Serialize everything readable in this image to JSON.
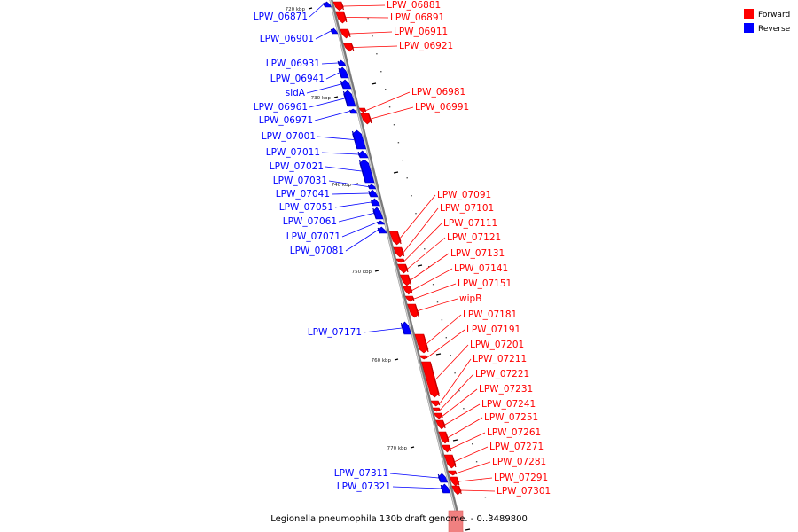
{
  "caption": "Legionella pneumophila 130b draft genome. - 0..3489800",
  "legend": [
    {
      "label": "Forward",
      "color": "#ff0000"
    },
    {
      "label": "Reverse",
      "color": "#0000ff"
    }
  ],
  "colors": {
    "forward": "#ff0000",
    "reverse": "#0000ff",
    "backbone": "#9a9a9a"
  },
  "ticks": [
    "720 kbp",
    "730 kbp",
    "740 kbp",
    "750 kbp",
    "760 kbp",
    "770 kbp"
  ],
  "genes": [
    {
      "id": "LPW_06871",
      "strand": "reverse"
    },
    {
      "id": "LPW_06881",
      "strand": "forward"
    },
    {
      "id": "LPW_06891",
      "strand": "forward"
    },
    {
      "id": "LPW_06901",
      "strand": "reverse"
    },
    {
      "id": "LPW_06911",
      "strand": "forward"
    },
    {
      "id": "LPW_06921",
      "strand": "forward"
    },
    {
      "id": "LPW_06931",
      "strand": "reverse"
    },
    {
      "id": "LPW_06941",
      "strand": "reverse"
    },
    {
      "id": "sidA",
      "strand": "reverse"
    },
    {
      "id": "LPW_06961",
      "strand": "reverse"
    },
    {
      "id": "LPW_06971",
      "strand": "reverse"
    },
    {
      "id": "LPW_06981",
      "strand": "forward"
    },
    {
      "id": "LPW_06991",
      "strand": "forward"
    },
    {
      "id": "LPW_07001",
      "strand": "reverse"
    },
    {
      "id": "LPW_07011",
      "strand": "reverse"
    },
    {
      "id": "LPW_07021",
      "strand": "reverse"
    },
    {
      "id": "LPW_07031",
      "strand": "reverse"
    },
    {
      "id": "LPW_07041",
      "strand": "reverse"
    },
    {
      "id": "LPW_07051",
      "strand": "reverse"
    },
    {
      "id": "LPW_07061",
      "strand": "reverse"
    },
    {
      "id": "LPW_07071",
      "strand": "reverse"
    },
    {
      "id": "LPW_07081",
      "strand": "reverse"
    },
    {
      "id": "LPW_07091",
      "strand": "forward"
    },
    {
      "id": "LPW_07101",
      "strand": "forward"
    },
    {
      "id": "LPW_07111",
      "strand": "forward"
    },
    {
      "id": "LPW_07121",
      "strand": "forward"
    },
    {
      "id": "LPW_07131",
      "strand": "forward"
    },
    {
      "id": "LPW_07141",
      "strand": "forward"
    },
    {
      "id": "LPW_07151",
      "strand": "forward"
    },
    {
      "id": "wipB",
      "strand": "forward"
    },
    {
      "id": "LPW_07171",
      "strand": "reverse"
    },
    {
      "id": "LPW_07181",
      "strand": "forward"
    },
    {
      "id": "LPW_07191",
      "strand": "forward"
    },
    {
      "id": "LPW_07201",
      "strand": "forward"
    },
    {
      "id": "LPW_07211",
      "strand": "forward"
    },
    {
      "id": "LPW_07221",
      "strand": "forward"
    },
    {
      "id": "LPW_07231",
      "strand": "forward"
    },
    {
      "id": "LPW_07241",
      "strand": "forward"
    },
    {
      "id": "LPW_07251",
      "strand": "forward"
    },
    {
      "id": "LPW_07261",
      "strand": "forward"
    },
    {
      "id": "LPW_07271",
      "strand": "forward"
    },
    {
      "id": "LPW_07281",
      "strand": "forward"
    },
    {
      "id": "LPW_07291",
      "strand": "forward"
    },
    {
      "id": "LPW_07301",
      "strand": "forward"
    },
    {
      "id": "LPW_07311",
      "strand": "reverse"
    },
    {
      "id": "LPW_07321",
      "strand": "reverse"
    }
  ]
}
